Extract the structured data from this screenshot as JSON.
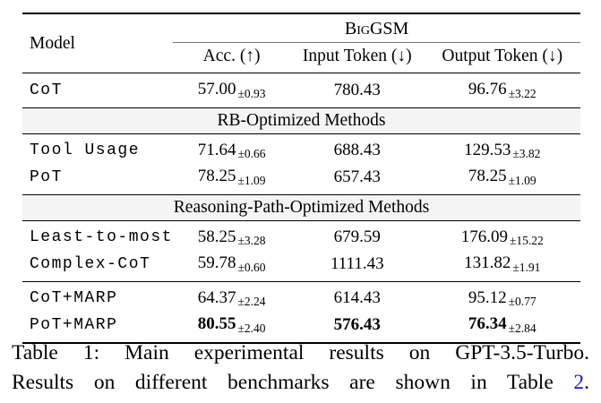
{
  "colors": {
    "band_background": "#f4f4f4",
    "link_blue": "#1a1ab8",
    "cmidrule_gray": "#777777"
  },
  "table": {
    "header": {
      "model": "Model",
      "benchmark": "BigGSM",
      "columns": [
        "Acc. (↑)",
        "Input Token (↓)",
        "Output Token (↓)"
      ]
    },
    "bands": [
      "RB-Optimized Methods",
      "Reasoning-Path-Optimized Methods"
    ],
    "rows": [
      {
        "model": "CoT",
        "acc": "57.00",
        "acc_pm": "±0.93",
        "input": "780.43",
        "output": "96.76",
        "output_pm": "±3.22"
      },
      {
        "model": "Tool Usage",
        "acc": "71.64",
        "acc_pm": "±0.66",
        "input": "688.43",
        "output": "129.53",
        "output_pm": "±3.82"
      },
      {
        "model": "PoT",
        "acc": "78.25",
        "acc_pm": "±1.09",
        "input": "657.43",
        "output": "78.25",
        "output_pm": "±1.09"
      },
      {
        "model": "Least-to-most",
        "acc": "58.25",
        "acc_pm": "±3.28",
        "input": "679.59",
        "output": "176.09",
        "output_pm": "±15.22"
      },
      {
        "model": "Complex-CoT",
        "acc": "59.78",
        "acc_pm": "±0.60",
        "input": "1111.43",
        "output": "131.82",
        "output_pm": "±1.91"
      },
      {
        "model": "CoT+MARP",
        "acc": "64.37",
        "acc_pm": "±2.24",
        "input": "614.43",
        "output": "95.12",
        "output_pm": "±0.77"
      },
      {
        "model": "PoT+MARP",
        "acc": "80.55",
        "acc_pm": "±2.40",
        "input": "576.43",
        "output": "76.34",
        "output_pm": "±2.84"
      }
    ]
  },
  "caption": {
    "line1": "Table 1: Main experimental results on GPT-3.5-Turbo.",
    "line2_before": "Results on different benchmarks are shown in Table ",
    "line2_link": "2",
    "line2_after": "."
  }
}
